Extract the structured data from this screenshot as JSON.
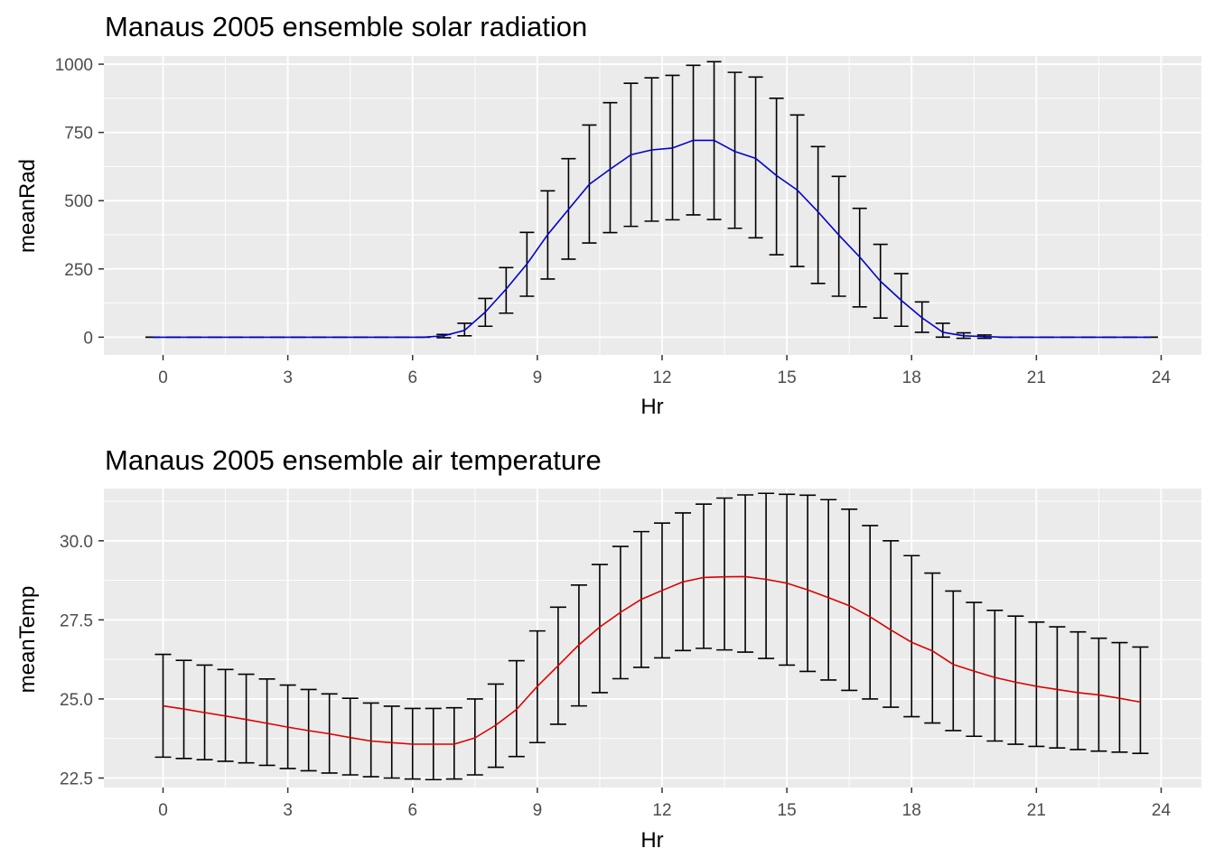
{
  "chart_data": [
    {
      "type": "line",
      "title": "Manaus 2005 ensemble solar radiation",
      "xlabel": "Hr",
      "ylabel": "meanRad",
      "xlim": [
        -0.25,
        24.75
      ],
      "ylim": [
        -65,
        1030
      ],
      "x_ticks": [
        0,
        3,
        6,
        9,
        12,
        15,
        18,
        21,
        24
      ],
      "y_ticks": [
        0,
        250,
        500,
        750,
        1000
      ],
      "y_tick_labels": [
        "0",
        "250",
        "500",
        "750",
        "1000"
      ],
      "grid": true,
      "line_color": "#0000cc",
      "errorbar_color": "#000000",
      "series": [
        {
          "x": [
            -0.25,
            0.25,
            0.75,
            1.25,
            1.75,
            2.25,
            2.75,
            3.25,
            3.75,
            4.25,
            4.75,
            5.25,
            5.75,
            6.25,
            6.75,
            7.25,
            7.75,
            8.25,
            8.75,
            9.25,
            9.75,
            10.25,
            10.75,
            11.25,
            11.75,
            12.25,
            12.75,
            13.25,
            13.75,
            14.25,
            14.75,
            15.25,
            15.75,
            16.25,
            16.75,
            17.25,
            17.75,
            18.25,
            18.75,
            19.25,
            19.75,
            20.25,
            20.75,
            21.25,
            21.75,
            22.25,
            22.75,
            23.25,
            23.75
          ],
          "mean": [
            0,
            0,
            0,
            0,
            0,
            0,
            0,
            0,
            0,
            0,
            0,
            0,
            0,
            0,
            5,
            25,
            92,
            176,
            268,
            376,
            468,
            560,
            615,
            668,
            686,
            693,
            721,
            721,
            680,
            655,
            592,
            539,
            459,
            374,
            294,
            205,
            135,
            71,
            18,
            5,
            2,
            0,
            0,
            0,
            0,
            0,
            0,
            0,
            0
          ],
          "lower": [
            0,
            0,
            0,
            0,
            0,
            0,
            0,
            0,
            0,
            0,
            0,
            0,
            0,
            0,
            -2,
            5,
            40,
            88,
            150,
            213,
            286,
            345,
            383,
            406,
            425,
            430,
            448,
            431,
            399,
            364,
            302,
            259,
            197,
            150,
            111,
            70,
            40,
            18,
            0,
            -4,
            -4,
            0,
            0,
            0,
            0,
            0,
            0,
            0,
            0
          ],
          "upper": [
            0,
            0,
            0,
            0,
            0,
            0,
            0,
            0,
            0,
            0,
            0,
            0,
            0,
            0,
            10,
            51,
            142,
            255,
            384,
            536,
            654,
            777,
            859,
            930,
            950,
            959,
            996,
            1009,
            970,
            953,
            875,
            814,
            698,
            589,
            472,
            340,
            233,
            129,
            51,
            16,
            8,
            0,
            0,
            0,
            0,
            0,
            0,
            0,
            0
          ]
        }
      ]
    },
    {
      "type": "line",
      "title": "Manaus 2005 ensemble air temperature",
      "xlabel": "Hr",
      "ylabel": "meanTemp",
      "xlim": [
        -0.25,
        24.75
      ],
      "ylim": [
        22.2,
        31.65
      ],
      "x_ticks": [
        0,
        3,
        6,
        9,
        12,
        15,
        18,
        21,
        24
      ],
      "y_ticks": [
        22.5,
        25.0,
        27.5,
        30.0
      ],
      "y_tick_labels": [
        "22.5",
        "25.0",
        "27.5",
        "30.0"
      ],
      "grid": true,
      "line_color": "#dd0000",
      "errorbar_color": "#000000",
      "series": [
        {
          "x": [
            0,
            0.5,
            1,
            1.5,
            2,
            2.5,
            3,
            3.5,
            4,
            4.5,
            5,
            5.5,
            6,
            6.5,
            7,
            7.5,
            8,
            8.5,
            9,
            9.5,
            10,
            10.5,
            11,
            11.5,
            12,
            12.5,
            13,
            13.5,
            14,
            14.5,
            15,
            15.5,
            16,
            16.5,
            17,
            17.5,
            18,
            18.5,
            19,
            19.5,
            20,
            20.5,
            21,
            21.5,
            22,
            22.5,
            23,
            23.5
          ],
          "mean": [
            24.78,
            24.68,
            24.57,
            24.46,
            24.35,
            24.23,
            24.11,
            24.0,
            23.9,
            23.78,
            23.67,
            23.62,
            23.57,
            23.57,
            23.57,
            23.77,
            24.17,
            24.67,
            25.4,
            26.05,
            26.71,
            27.27,
            27.74,
            28.15,
            28.43,
            28.7,
            28.84,
            28.86,
            28.87,
            28.78,
            28.66,
            28.45,
            28.2,
            27.95,
            27.6,
            27.18,
            26.79,
            26.52,
            26.09,
            25.88,
            25.68,
            25.53,
            25.4,
            25.3,
            25.2,
            25.13,
            25.02,
            24.9
          ],
          "lower": [
            23.16,
            23.12,
            23.08,
            23.03,
            22.98,
            22.9,
            22.8,
            22.73,
            22.66,
            22.6,
            22.54,
            22.5,
            22.47,
            22.45,
            22.47,
            22.6,
            22.84,
            23.18,
            23.62,
            24.2,
            24.78,
            25.2,
            25.64,
            26.0,
            26.3,
            26.53,
            26.6,
            26.55,
            26.48,
            26.28,
            26.07,
            25.87,
            25.6,
            25.27,
            25.0,
            24.74,
            24.44,
            24.24,
            24.0,
            23.82,
            23.67,
            23.57,
            23.5,
            23.45,
            23.4,
            23.35,
            23.32,
            23.28
          ],
          "upper": [
            26.41,
            26.22,
            26.07,
            25.93,
            25.78,
            25.63,
            25.44,
            25.3,
            25.16,
            25.02,
            24.87,
            24.77,
            24.7,
            24.7,
            24.72,
            25.0,
            25.47,
            26.21,
            27.15,
            27.9,
            28.6,
            29.25,
            29.82,
            30.29,
            30.56,
            30.88,
            31.16,
            31.35,
            31.45,
            31.5,
            31.47,
            31.44,
            31.3,
            31.0,
            30.48,
            30.0,
            29.53,
            28.98,
            28.41,
            28.05,
            27.8,
            27.62,
            27.43,
            27.28,
            27.12,
            26.92,
            26.78,
            26.64
          ]
        }
      ]
    }
  ]
}
